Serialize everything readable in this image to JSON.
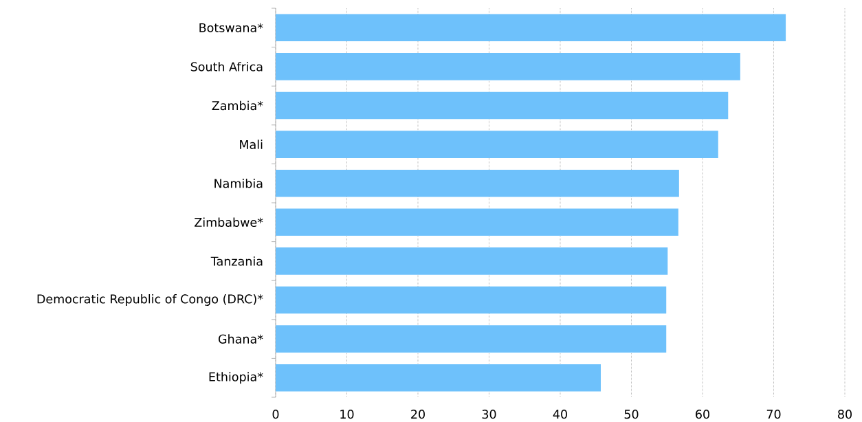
{
  "chart_data": {
    "type": "bar",
    "orientation": "horizontal",
    "categories": [
      "Botswana*",
      "South Africa",
      "Zambia*",
      "Mali",
      "Namibia",
      "Zimbabwe*",
      "Tanzania",
      "Democratic Republic of Congo (DRC)*",
      "Ghana*",
      "Ethiopia*"
    ],
    "values": [
      71.7,
      65.3,
      63.6,
      62.2,
      56.7,
      56.6,
      55.1,
      54.9,
      54.9,
      45.7
    ],
    "color": "#6ec1fb",
    "xlim": [
      0,
      80
    ],
    "xticks": [
      0,
      10,
      20,
      30,
      40,
      50,
      60,
      70,
      80
    ],
    "grid": "x"
  }
}
